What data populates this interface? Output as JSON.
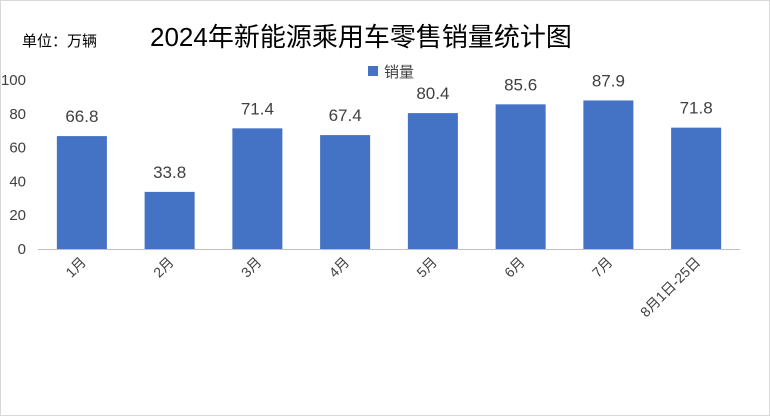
{
  "unit_label": "单位：万辆",
  "chart_data": {
    "type": "bar",
    "title": "2024年新能源乘用车零售销量统计图",
    "categories": [
      "1月",
      "2月",
      "3月",
      "4月",
      "5月",
      "6月",
      "7月",
      "8月1日-25日"
    ],
    "series": [
      {
        "name": "销量",
        "values": [
          66.8,
          33.8,
          71.4,
          67.4,
          80.4,
          85.6,
          87.9,
          71.8
        ]
      }
    ],
    "data_labels": [
      "66.8",
      "33.8",
      "71.4",
      "67.4",
      "80.4",
      "85.6",
      "87.9",
      "71.8"
    ],
    "ylim": [
      0,
      100
    ],
    "y_ticks": [
      0,
      20,
      40,
      60,
      80,
      100
    ],
    "grid": false,
    "legend_position": "top-center",
    "bar_color": "#4472C4",
    "text_color": "#404040",
    "axis_color": "#bfbfbf"
  }
}
